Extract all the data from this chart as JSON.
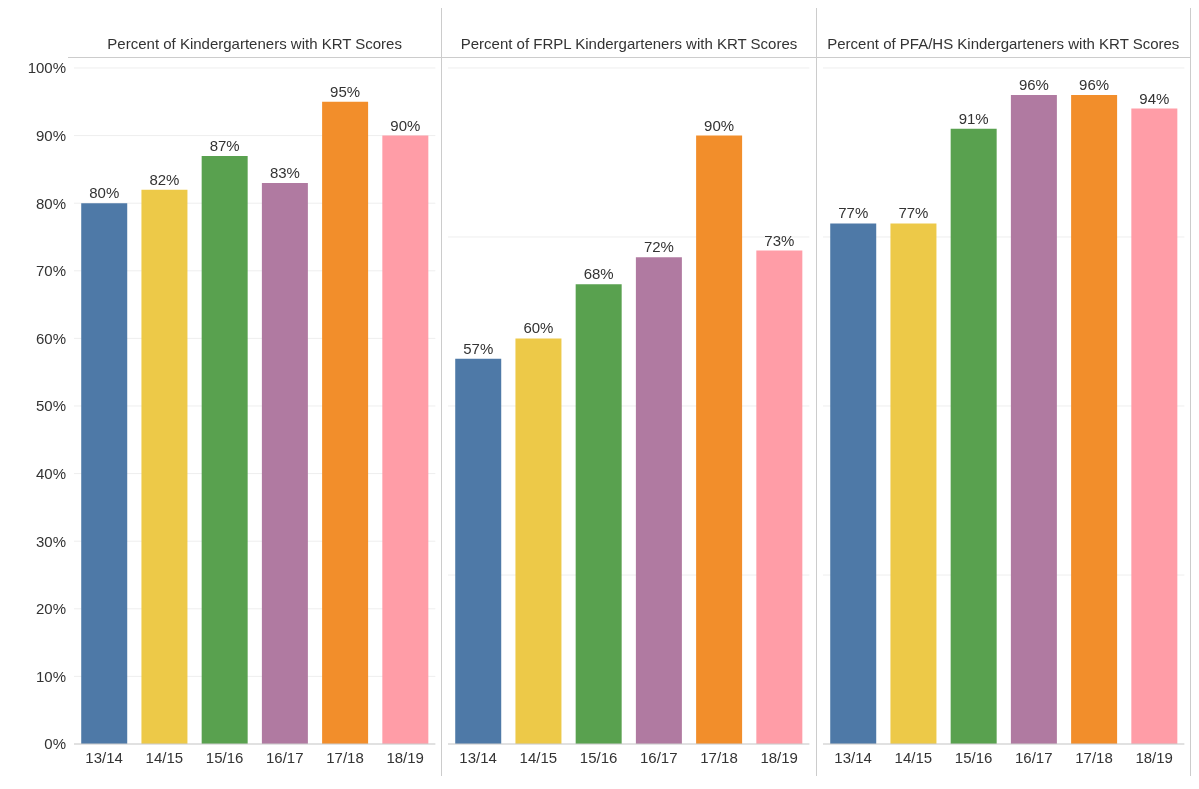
{
  "chart_data": [
    {
      "type": "bar",
      "title": "Percent of Kindergarteners with KRT Scores",
      "categories": [
        "13/14",
        "14/15",
        "15/16",
        "16/17",
        "17/18",
        "18/19"
      ],
      "values": [
        80,
        82,
        87,
        83,
        95,
        90
      ],
      "value_labels": [
        "80%",
        "82%",
        "87%",
        "83%",
        "95%",
        "90%"
      ],
      "colors": [
        "#4e79a7",
        "#edc948",
        "#59a14f",
        "#b07aa1",
        "#f28e2b",
        "#ff9da7"
      ],
      "ylim": [
        0,
        100
      ],
      "yticks": [
        {
          "value": 0,
          "label": "0%"
        },
        {
          "value": 10,
          "label": "10%"
        },
        {
          "value": 20,
          "label": "20%"
        },
        {
          "value": 30,
          "label": "30%"
        },
        {
          "value": 40,
          "label": "40%"
        },
        {
          "value": 50,
          "label": "50%"
        },
        {
          "value": 60,
          "label": "60%"
        },
        {
          "value": 70,
          "label": "70%"
        },
        {
          "value": 80,
          "label": "80%"
        },
        {
          "value": 90,
          "label": "90%"
        },
        {
          "value": 100,
          "label": "100%"
        }
      ],
      "grid": "y"
    },
    {
      "type": "bar",
      "title": "Percent of FRPL Kindergarteners with KRT Scores",
      "categories": [
        "13/14",
        "14/15",
        "15/16",
        "16/17",
        "17/18",
        "18/19"
      ],
      "values": [
        57,
        60,
        68,
        72,
        90,
        73
      ],
      "value_labels": [
        "57%",
        "60%",
        "68%",
        "72%",
        "90%",
        "73%"
      ],
      "colors": [
        "#4e79a7",
        "#edc948",
        "#59a14f",
        "#b07aa1",
        "#f28e2b",
        "#ff9da7"
      ],
      "ylim": [
        0,
        100
      ],
      "tick_labels": "x",
      "grid": "y"
    },
    {
      "type": "bar",
      "title": "Percent of PFA/HS Kindergarteners with KRT Scores",
      "categories": [
        "13/14",
        "14/15",
        "15/16",
        "16/17",
        "17/18",
        "18/19"
      ],
      "values": [
        77,
        77,
        91,
        96,
        96,
        94
      ],
      "value_labels": [
        "77%",
        "77%",
        "91%",
        "96%",
        "96%",
        "94%"
      ],
      "colors": [
        "#4e79a7",
        "#edc948",
        "#59a14f",
        "#b07aa1",
        "#f28e2b",
        "#ff9da7"
      ],
      "ylim": [
        0,
        100
      ],
      "tick_labels": "x",
      "grid": "y"
    }
  ]
}
